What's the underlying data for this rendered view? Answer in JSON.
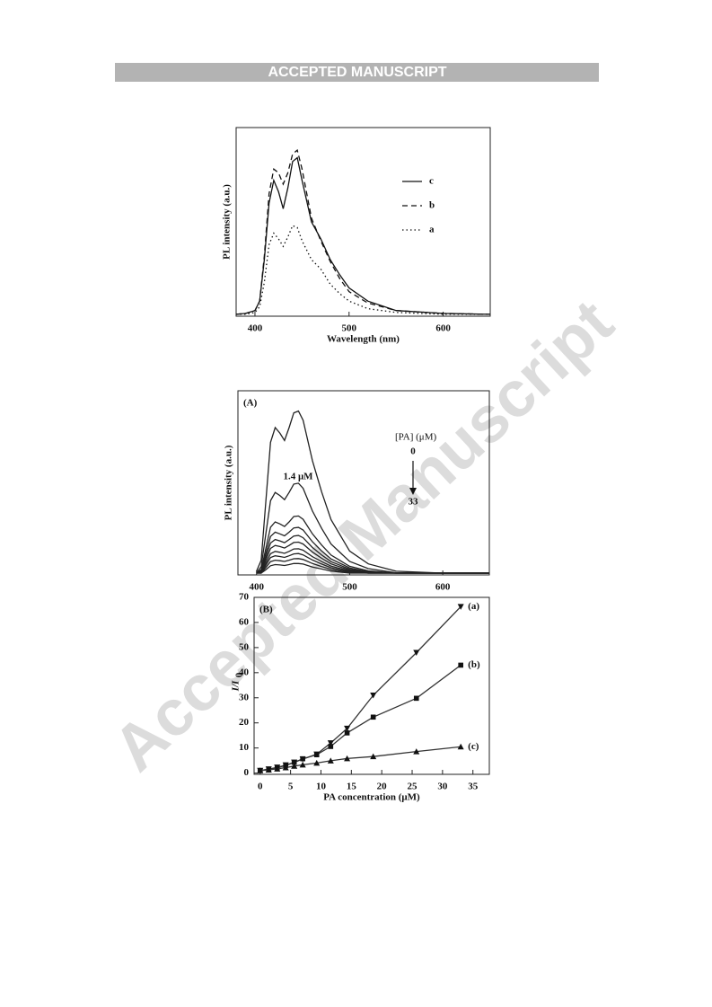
{
  "header": {
    "banner": "ACCEPTED MANUSCRIPT"
  },
  "watermark": "Accepted Manuscript",
  "chart_data": [
    {
      "type": "line",
      "xlabel": "Wavelength (nm)",
      "ylabel": "PL intensity (a.u.)",
      "x": [
        380,
        390,
        400,
        405,
        410,
        415,
        420,
        425,
        430,
        435,
        440,
        445,
        450,
        460,
        470,
        480,
        490,
        500,
        520,
        550,
        600,
        650
      ],
      "xlim": [
        380,
        650
      ],
      "xticks": [
        400,
        500,
        600
      ],
      "ylim": [
        0,
        100
      ],
      "legend": "upper right",
      "series": [
        {
          "name": "c",
          "color": "#111111",
          "style": "solid",
          "values": [
            1,
            1.5,
            3,
            8,
            30,
            60,
            72,
            66,
            57,
            68,
            82,
            84,
            72,
            50,
            41,
            30,
            22,
            15,
            8,
            3,
            1.5,
            1
          ]
        },
        {
          "name": "b",
          "color": "#111111",
          "style": "dashed",
          "values": [
            1,
            1.5,
            3,
            8,
            32,
            65,
            78,
            76,
            70,
            76,
            86,
            88,
            78,
            52,
            40,
            29,
            20,
            13,
            7,
            3,
            1.5,
            1
          ]
        },
        {
          "name": "a",
          "color": "#111111",
          "style": "dotted",
          "values": [
            1,
            1,
            2,
            5,
            18,
            38,
            44,
            41,
            37,
            42,
            48,
            47,
            40,
            30,
            25,
            17,
            12,
            8,
            4,
            2,
            1,
            1
          ]
        }
      ]
    },
    {
      "type": "line",
      "panel": "(A)",
      "ylabel": "PL intensity (a.u.)",
      "annotations": [
        "[PA] (μM)",
        "0",
        "33",
        "1.4 μM"
      ],
      "x": [
        400,
        405,
        410,
        415,
        420,
        425,
        430,
        435,
        440,
        445,
        450,
        460,
        470,
        480,
        500,
        520,
        550,
        600,
        650
      ],
      "xlim": [
        380,
        650
      ],
      "xticks": [
        400,
        500,
        600
      ],
      "ylim": [
        0,
        100
      ],
      "color": "#222222",
      "series": [
        {
          "values": [
            2,
            8,
            40,
            72,
            80,
            77,
            73,
            80,
            88,
            89,
            84,
            62,
            45,
            30,
            13,
            6,
            2,
            1,
            1
          ]
        },
        {
          "values": [
            1,
            4.5,
            22.4,
            40.3,
            44.8,
            43.1,
            40.9,
            44.8,
            49.3,
            49.8,
            47,
            34.7,
            25.2,
            16.8,
            7.3,
            3.4,
            1.1,
            1,
            1
          ]
        },
        {
          "values": [
            1,
            2.9,
            14.4,
            25.9,
            28.8,
            27.7,
            26.3,
            28.8,
            31.7,
            32,
            30.2,
            22.3,
            16.2,
            10.8,
            4.7,
            2.2,
            1,
            1,
            1
          ]
        },
        {
          "values": [
            1,
            2.3,
            11.6,
            20.9,
            23.2,
            22.3,
            21.2,
            23.2,
            25.5,
            25.8,
            24.4,
            18,
            13,
            8.7,
            3.8,
            1.7,
            1,
            1,
            1
          ]
        },
        {
          "values": [
            1,
            1.9,
            9.6,
            17.3,
            19.2,
            18.5,
            17.5,
            19.2,
            21.1,
            21.4,
            20.2,
            14.9,
            10.8,
            7.2,
            3.1,
            1.4,
            1,
            1,
            1
          ]
        },
        {
          "values": [
            1,
            1.6,
            8,
            14.4,
            16,
            15.4,
            14.6,
            16,
            17.6,
            17.8,
            16.8,
            12.4,
            9,
            6,
            2.6,
            1.2,
            1,
            1,
            1
          ]
        },
        {
          "values": [
            1,
            1.3,
            6.4,
            11.5,
            12.8,
            12.3,
            11.7,
            12.8,
            14.1,
            14.2,
            13.4,
            9.9,
            7.2,
            4.8,
            2.1,
            1,
            1,
            1,
            1
          ]
        },
        {
          "values": [
            1,
            1,
            5.2,
            9.4,
            10.4,
            10,
            9.5,
            10.4,
            11.4,
            11.6,
            10.9,
            8.1,
            5.9,
            3.9,
            1.7,
            1,
            1,
            1,
            1
          ]
        },
        {
          "values": [
            1,
            1,
            4,
            7.2,
            8,
            7.7,
            7.3,
            8,
            8.8,
            8.9,
            8.4,
            6.2,
            4.5,
            3,
            1.3,
            1,
            1,
            1,
            1
          ]
        },
        {
          "values": [
            1,
            1,
            2.8,
            5,
            5.6,
            5.4,
            5.1,
            5.6,
            6.2,
            6.2,
            5.9,
            4.3,
            3.2,
            2.1,
            1,
            1,
            1,
            1,
            1
          ]
        }
      ]
    },
    {
      "type": "line",
      "panel": "(B)",
      "xlabel": "PA concentration (μM)",
      "ylabel": "I/I",
      "ylabel_sub": "0",
      "x": [
        0,
        1.4,
        2.8,
        4.2,
        5.6,
        7,
        9.3,
        11.6,
        14.3,
        18.6,
        25.7,
        33
      ],
      "xlim": [
        -1,
        37.7
      ],
      "xticks": [
        0,
        5,
        10,
        15,
        20,
        25,
        30,
        35
      ],
      "ylim": [
        -0.5,
        70
      ],
      "yticks": [
        0,
        10,
        20,
        30,
        40,
        50,
        60,
        70
      ],
      "series": [
        {
          "name": "(a)",
          "color": "#333333",
          "marker": "triangle-down",
          "values": [
            1,
            1.6,
            2.3,
            3.2,
            4.3,
            5.6,
            7.5,
            12,
            17.8,
            31,
            48,
            66.3
          ]
        },
        {
          "name": "(b)",
          "color": "#333333",
          "marker": "square",
          "values": [
            1,
            1.5,
            2.2,
            3,
            4.3,
            5.7,
            7.3,
            10.6,
            16,
            22.3,
            29.8,
            43
          ]
        },
        {
          "name": "(c)",
          "color": "#333333",
          "marker": "triangle",
          "values": [
            1,
            1.3,
            1.7,
            2.2,
            2.8,
            3.3,
            4,
            4.9,
            5.8,
            6.6,
            8.6,
            10.5
          ]
        }
      ]
    }
  ]
}
